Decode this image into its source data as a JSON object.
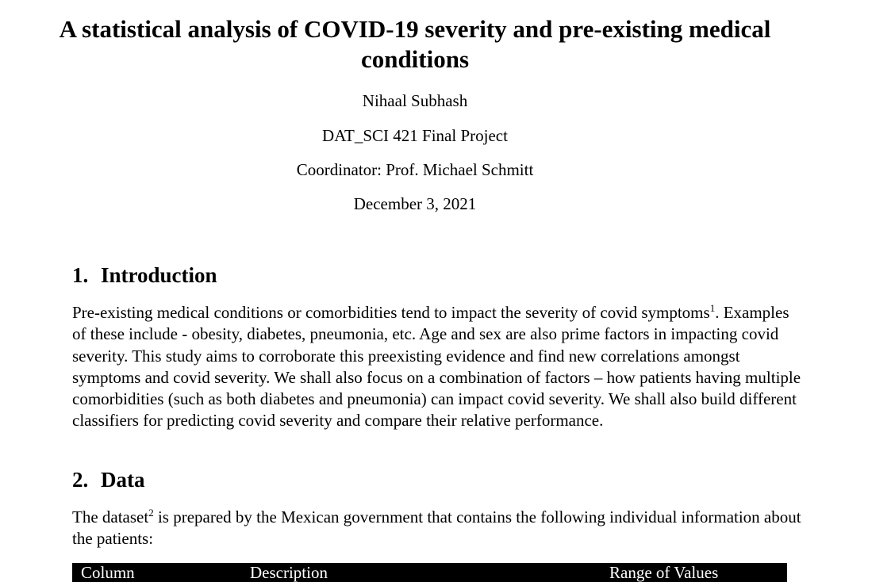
{
  "paper": {
    "title": "A statistical analysis of COVID-19 severity and pre-existing medical conditions",
    "author": "Nihaal Subhash",
    "course": "DAT_SCI 421 Final Project",
    "coordinator": "Coordinator: Prof. Michael Schmitt",
    "date": "December 3, 2021"
  },
  "sections": {
    "introduction": {
      "number": "1.",
      "heading": "Introduction",
      "text_before_ref": "Pre-existing medical conditions or comorbidities tend to impact the severity of covid symptoms",
      "ref": "1",
      "text_after_ref": ". Examples of these include - obesity, diabetes, pneumonia, etc. Age and sex are also prime factors in impacting covid severity. This study aims to corroborate this preexisting evidence and find new correlations amongst symptoms and covid severity. We shall also focus on a combination of factors – how patients having multiple comorbidities (such as both diabetes and pneumonia) can impact covid severity. We shall also build different classifiers for predicting covid severity and compare their relative performance."
    },
    "data": {
      "number": "2.",
      "heading": "Data",
      "text_before_ref": "The dataset",
      "ref": "2",
      "text_after_ref": " is prepared by the Mexican government that contains the following individual information about the patients:"
    }
  },
  "table": {
    "headers": [
      "Column",
      "Description",
      "Range of Values"
    ]
  }
}
